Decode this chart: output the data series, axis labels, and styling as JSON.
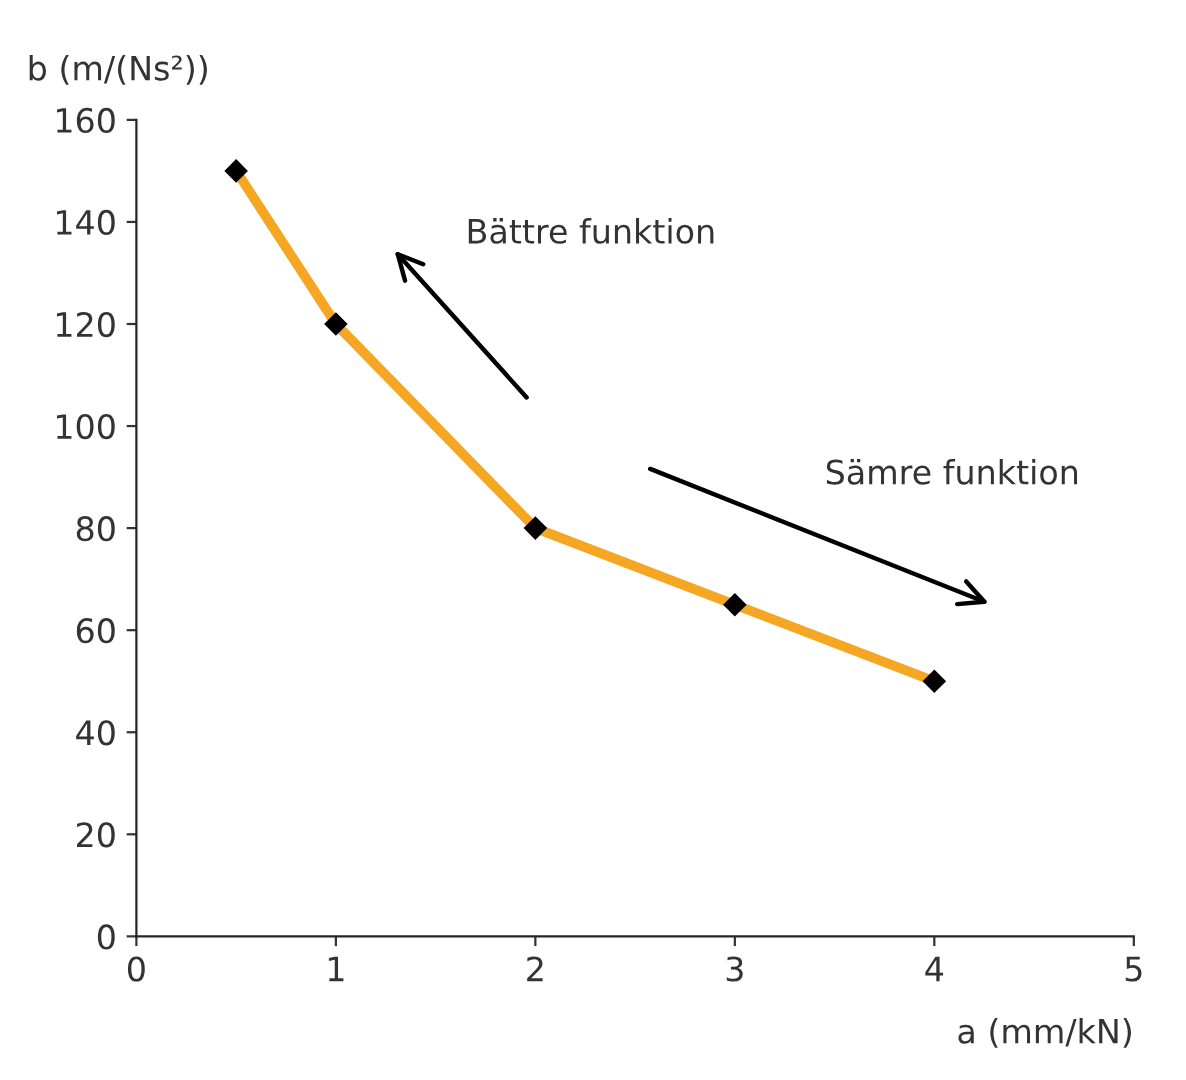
{
  "chart_data": {
    "type": "line",
    "x": [
      0.5,
      1,
      2,
      3,
      4
    ],
    "series": [
      {
        "color": "#f5a623",
        "values": [
          150,
          120,
          80,
          65,
          50
        ]
      }
    ],
    "xlabel": "a (mm/kN)",
    "ylabel": "b (m/(Ns²))",
    "xlim": [
      0,
      5
    ],
    "xticks": [
      0,
      1,
      2,
      3,
      4,
      5
    ],
    "ylim": [
      0,
      160
    ],
    "yticks": [
      0,
      20,
      40,
      60,
      80,
      100,
      120,
      140,
      160
    ],
    "annotations": [
      "Bättre funktion",
      "Sämre funktion"
    ],
    "marker": "diamond",
    "grid": false,
    "legend": false
  }
}
